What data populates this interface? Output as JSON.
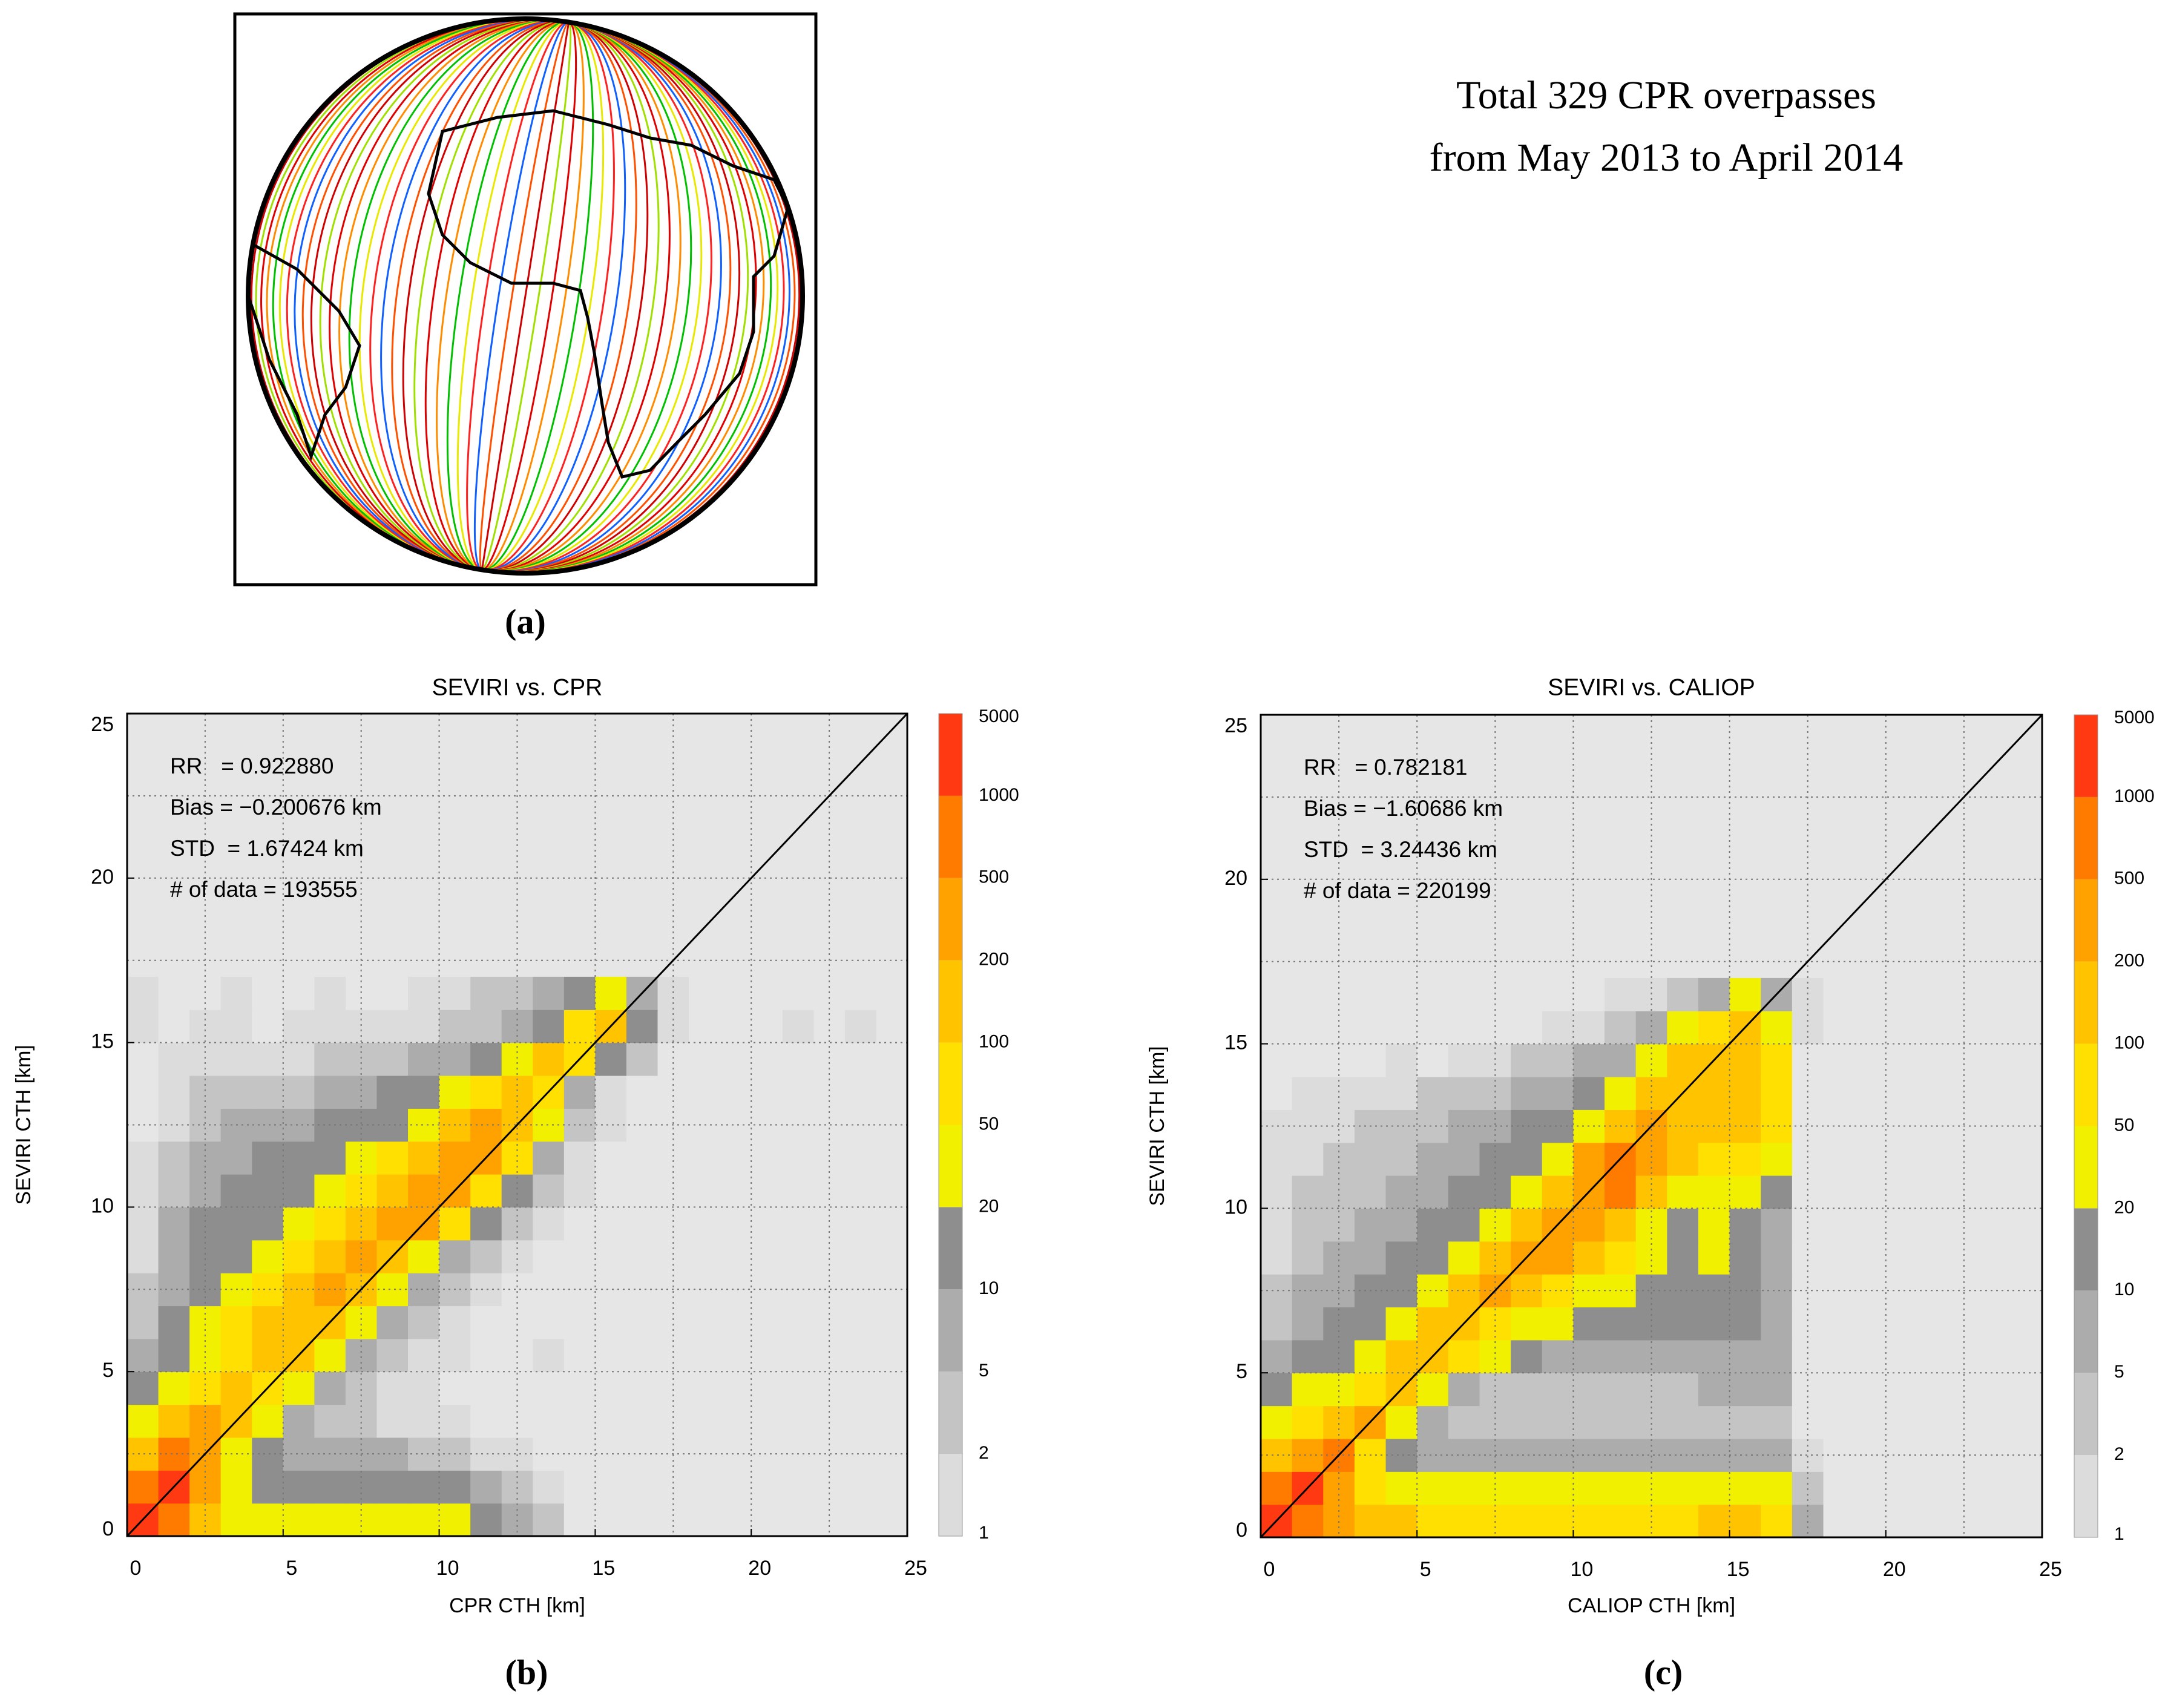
{
  "chart_data": [
    {
      "type": "map",
      "annotation": [
        "Total 329 CPR overpasses",
        "from May 2013 to April 2014"
      ],
      "label": "(a)"
    },
    {
      "type": "heatmap",
      "title": "SEVIRI vs. CPR",
      "xlabel": "CPR CTH [km]",
      "ylabel": "SEVIRI CTH [km]",
      "xlim": [
        0,
        25
      ],
      "ylim": [
        0,
        25
      ],
      "xticks": [
        0,
        5,
        10,
        15,
        20,
        25
      ],
      "yticks": [
        0,
        5,
        10,
        15,
        20,
        25
      ],
      "xgrid": [
        2.5,
        5,
        7.5,
        10,
        12.5,
        15,
        17.5,
        20,
        22.5
      ],
      "ygrid": [
        2.5,
        5,
        7.5,
        10,
        12.5,
        15,
        17.5,
        20,
        22.5
      ],
      "background": "#e6e6e6",
      "annotations": [
        "RR   = 0.922880",
        "Bias = −0.200676 km",
        "STD  = 1.67424 km",
        "# of data = 193555"
      ],
      "label": "(b)",
      "colorbar": {
        "levels": [
          1,
          2,
          5,
          10,
          20,
          50,
          100,
          200,
          500,
          1000,
          5000
        ],
        "colors": [
          "#dcdcdc",
          "#c4c4c4",
          "#acacac",
          "#8e8e8e",
          "#f0f000",
          "#ffe000",
          "#ffc300",
          "#ffa200",
          "#ff7b00",
          "#ff3a12"
        ]
      },
      "xbins": [
        0,
        1,
        2,
        3,
        4,
        5,
        6,
        7,
        8,
        9,
        10,
        11,
        12,
        13,
        14,
        15,
        16,
        17,
        18,
        19,
        20,
        21,
        22,
        23,
        24
      ],
      "ybins": [
        0,
        1,
        2,
        3,
        4,
        5,
        6,
        7,
        8,
        9,
        10,
        11,
        12,
        13,
        14,
        15,
        16,
        17
      ],
      "z": [
        [
          2000,
          700,
          150,
          30,
          30,
          30,
          30,
          30,
          30,
          30,
          30,
          15,
          7,
          3,
          0,
          0,
          0,
          0,
          0,
          0,
          0,
          0,
          0,
          0
        ],
        [
          700,
          2000,
          300,
          30,
          15,
          15,
          15,
          15,
          15,
          15,
          15,
          7,
          3,
          1,
          0,
          0,
          0,
          0,
          0,
          0,
          0,
          0,
          0,
          0
        ],
        [
          150,
          700,
          300,
          30,
          15,
          7,
          7,
          7,
          7,
          3,
          3,
          1,
          1,
          0,
          0,
          0,
          0,
          0,
          0,
          0,
          0,
          0,
          0,
          0
        ],
        [
          30,
          150,
          300,
          150,
          30,
          7,
          3,
          3,
          1,
          1,
          1,
          0,
          0,
          0,
          0,
          0,
          0,
          0,
          0,
          0,
          0,
          0,
          0,
          0
        ],
        [
          15,
          30,
          70,
          150,
          70,
          30,
          7,
          3,
          1,
          1,
          0,
          0,
          0,
          0,
          0,
          0,
          0,
          0,
          0,
          0,
          0,
          0,
          0,
          0
        ],
        [
          7,
          15,
          30,
          70,
          150,
          150,
          30,
          7,
          3,
          1,
          1,
          0,
          0,
          1,
          0,
          0,
          0,
          0,
          0,
          0,
          0,
          0,
          0,
          0
        ],
        [
          3,
          15,
          30,
          70,
          150,
          150,
          150,
          30,
          7,
          3,
          1,
          0,
          0,
          0,
          0,
          0,
          0,
          0,
          0,
          0,
          0,
          0,
          0,
          0
        ],
        [
          3,
          7,
          15,
          30,
          70,
          150,
          300,
          150,
          30,
          7,
          3,
          1,
          0,
          0,
          0,
          0,
          0,
          0,
          0,
          0,
          0,
          0,
          0,
          0
        ],
        [
          1,
          7,
          15,
          15,
          30,
          70,
          150,
          300,
          150,
          30,
          7,
          3,
          1,
          0,
          0,
          0,
          0,
          0,
          0,
          0,
          0,
          0,
          0,
          0
        ],
        [
          1,
          7,
          15,
          15,
          15,
          30,
          70,
          150,
          300,
          300,
          70,
          15,
          3,
          1,
          0,
          0,
          0,
          0,
          0,
          0,
          0,
          0,
          0,
          0
        ],
        [
          1,
          3,
          7,
          15,
          15,
          15,
          30,
          70,
          150,
          300,
          300,
          70,
          15,
          3,
          1,
          0,
          0,
          0,
          0,
          0,
          0,
          0,
          0,
          0
        ],
        [
          1,
          3,
          7,
          7,
          15,
          15,
          15,
          30,
          70,
          150,
          300,
          300,
          70,
          7,
          1,
          0,
          0,
          0,
          0,
          0,
          0,
          0,
          0,
          0
        ],
        [
          0,
          1,
          3,
          7,
          7,
          7,
          15,
          15,
          15,
          30,
          150,
          300,
          150,
          30,
          3,
          1,
          0,
          0,
          0,
          0,
          0,
          0,
          0,
          0
        ],
        [
          0,
          1,
          3,
          3,
          3,
          3,
          7,
          7,
          15,
          15,
          30,
          70,
          150,
          70,
          7,
          1,
          0,
          0,
          0,
          0,
          0,
          0,
          0,
          0
        ],
        [
          0,
          1,
          1,
          1,
          1,
          1,
          3,
          3,
          3,
          7,
          7,
          15,
          30,
          150,
          70,
          15,
          3,
          0,
          0,
          0,
          0,
          0,
          0,
          0
        ],
        [
          1,
          0,
          1,
          1,
          0,
          1,
          1,
          1,
          1,
          1,
          3,
          3,
          7,
          15,
          70,
          150,
          15,
          1,
          0,
          0,
          0,
          1,
          0,
          1
        ],
        [
          1,
          0,
          0,
          1,
          0,
          0,
          1,
          0,
          0,
          1,
          1,
          3,
          3,
          7,
          15,
          30,
          7,
          1,
          0,
          0,
          0,
          0,
          0,
          0
        ]
      ]
    },
    {
      "type": "heatmap",
      "title": "SEVIRI vs. CALIOP",
      "xlabel": "CALIOP CTH [km]",
      "ylabel": "SEVIRI CTH [km]",
      "xlim": [
        0,
        25
      ],
      "ylim": [
        0,
        25
      ],
      "xticks": [
        0,
        5,
        10,
        15,
        20,
        25
      ],
      "yticks": [
        0,
        5,
        10,
        15,
        20,
        25
      ],
      "xgrid": [
        2.5,
        5,
        7.5,
        10,
        12.5,
        15,
        17.5,
        20,
        22.5
      ],
      "ygrid": [
        2.5,
        5,
        7.5,
        10,
        12.5,
        15,
        17.5,
        20,
        22.5
      ],
      "background": "#e6e6e6",
      "annotations": [
        "RR   = 0.782181",
        "Bias = −1.60686 km",
        "STD  = 3.24436 km",
        "# of data = 220199"
      ],
      "label": "(c)",
      "colorbar": {
        "levels": [
          1,
          2,
          5,
          10,
          20,
          50,
          100,
          200,
          500,
          1000,
          5000
        ],
        "colors": [
          "#dcdcdc",
          "#c4c4c4",
          "#acacac",
          "#8e8e8e",
          "#f0f000",
          "#ffe000",
          "#ffc300",
          "#ffa200",
          "#ff7b00",
          "#ff3a12"
        ]
      },
      "xbins": [
        0,
        1,
        2,
        3,
        4,
        5,
        6,
        7,
        8,
        9,
        10,
        11,
        12,
        13,
        14,
        15,
        16,
        17,
        18,
        19,
        20,
        21,
        22,
        23,
        24
      ],
      "ybins": [
        0,
        1,
        2,
        3,
        4,
        5,
        6,
        7,
        8,
        9,
        10,
        11,
        12,
        13,
        14,
        15,
        16,
        17
      ],
      "z": [
        [
          2000,
          700,
          300,
          150,
          150,
          70,
          70,
          70,
          70,
          70,
          70,
          70,
          70,
          70,
          150,
          150,
          70,
          7,
          0,
          0,
          0,
          0,
          0,
          0
        ],
        [
          700,
          2000,
          300,
          70,
          30,
          30,
          30,
          30,
          30,
          30,
          30,
          30,
          30,
          30,
          30,
          30,
          30,
          3,
          0,
          0,
          0,
          0,
          0,
          0
        ],
        [
          150,
          300,
          700,
          70,
          15,
          7,
          7,
          7,
          7,
          7,
          7,
          7,
          7,
          7,
          7,
          7,
          7,
          1,
          0,
          0,
          0,
          0,
          0,
          0
        ],
        [
          30,
          70,
          150,
          300,
          30,
          7,
          3,
          3,
          3,
          3,
          3,
          3,
          3,
          3,
          3,
          3,
          3,
          0,
          0,
          0,
          0,
          0,
          0,
          0
        ],
        [
          15,
          30,
          30,
          70,
          150,
          30,
          7,
          3,
          3,
          3,
          3,
          3,
          3,
          3,
          7,
          7,
          7,
          0,
          0,
          0,
          0,
          0,
          0,
          0
        ],
        [
          7,
          15,
          15,
          30,
          150,
          150,
          70,
          30,
          15,
          7,
          7,
          7,
          7,
          7,
          7,
          7,
          7,
          0,
          0,
          0,
          0,
          0,
          0,
          0
        ],
        [
          3,
          7,
          15,
          15,
          30,
          150,
          150,
          70,
          30,
          30,
          15,
          15,
          15,
          15,
          15,
          15,
          7,
          0,
          0,
          0,
          0,
          0,
          0,
          0
        ],
        [
          3,
          7,
          7,
          15,
          15,
          30,
          150,
          300,
          150,
          70,
          30,
          30,
          15,
          15,
          15,
          15,
          7,
          0,
          0,
          0,
          0,
          0,
          0,
          0
        ],
        [
          1,
          3,
          7,
          7,
          15,
          15,
          30,
          150,
          300,
          300,
          150,
          70,
          30,
          15,
          30,
          15,
          7,
          0,
          0,
          0,
          0,
          0,
          0,
          0
        ],
        [
          1,
          3,
          3,
          7,
          7,
          15,
          15,
          30,
          150,
          300,
          300,
          150,
          30,
          15,
          30,
          15,
          7,
          0,
          0,
          0,
          0,
          0,
          0,
          0
        ],
        [
          1,
          3,
          3,
          3,
          7,
          7,
          15,
          15,
          30,
          150,
          300,
          700,
          150,
          30,
          30,
          30,
          15,
          0,
          0,
          0,
          0,
          0,
          0,
          0
        ],
        [
          1,
          1,
          3,
          3,
          3,
          7,
          7,
          15,
          15,
          30,
          300,
          700,
          300,
          150,
          70,
          70,
          30,
          0,
          0,
          0,
          0,
          0,
          0,
          0
        ],
        [
          1,
          1,
          1,
          3,
          3,
          3,
          7,
          7,
          15,
          15,
          30,
          150,
          300,
          150,
          150,
          150,
          70,
          0,
          0,
          0,
          0,
          0,
          0,
          0
        ],
        [
          0,
          1,
          1,
          1,
          1,
          3,
          3,
          3,
          7,
          7,
          15,
          30,
          150,
          150,
          150,
          150,
          70,
          0,
          0,
          0,
          0,
          0,
          0,
          0
        ],
        [
          0,
          0,
          0,
          0,
          1,
          0,
          1,
          1,
          3,
          3,
          7,
          7,
          30,
          150,
          150,
          150,
          70,
          0,
          0,
          0,
          0,
          0,
          0,
          0
        ],
        [
          0,
          0,
          0,
          0,
          0,
          0,
          0,
          0,
          0,
          1,
          1,
          3,
          7,
          30,
          70,
          150,
          30,
          1,
          0,
          0,
          0,
          0,
          0,
          0
        ],
        [
          0,
          0,
          0,
          0,
          0,
          0,
          0,
          0,
          0,
          0,
          0,
          1,
          1,
          3,
          7,
          30,
          7,
          1,
          0,
          0,
          0,
          0,
          0,
          0
        ]
      ]
    }
  ]
}
